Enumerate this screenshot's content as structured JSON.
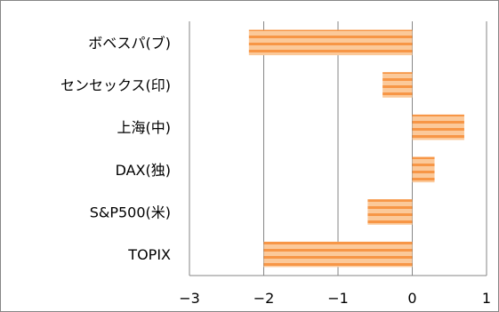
{
  "chart_data": {
    "type": "bar",
    "orientation": "horizontal",
    "title": "",
    "xlabel": "",
    "ylabel": "",
    "categories": [
      "ボベスパ(ブ)",
      "センセックス(印)",
      "上海(中)",
      "DAX(独)",
      "S&P500(米)",
      "TOPIX"
    ],
    "values": [
      -2.2,
      -0.4,
      0.7,
      0.3,
      -0.6,
      -2.0
    ],
    "xlim": [
      -3,
      1
    ],
    "xticks": [
      "−3",
      "−2",
      "−1",
      "0",
      "1"
    ],
    "grid": "vertical",
    "legend": "none",
    "colors": {
      "bar_fill": "#fbc99a",
      "bar_stripe": "#f79646",
      "grid": "#868686",
      "frame": "#868686"
    }
  }
}
